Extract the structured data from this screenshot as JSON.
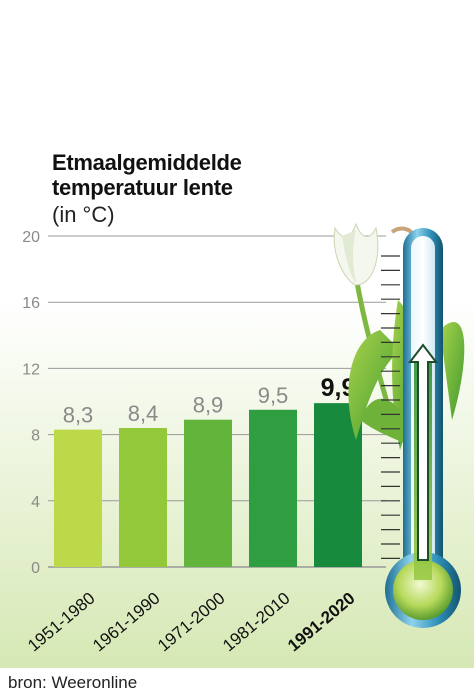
{
  "chart_data": {
    "type": "bar",
    "title": "Etmaalgemiddelde temperatuur lente",
    "title_lines": [
      "Etmaalgemiddelde",
      "temperatuur lente"
    ],
    "unit_label": "(in °C)",
    "categories": [
      "1951-1980",
      "1961-1990",
      "1971-2000",
      "1981-2010",
      "1991-2020"
    ],
    "values": [
      8.3,
      8.4,
      8.9,
      9.5,
      9.9
    ],
    "value_labels": [
      "8,3",
      "8,4",
      "8,9",
      "9,5",
      "9,9"
    ],
    "highlighted_category": "1991-2020",
    "ylim": [
      0,
      20
    ],
    "yticks": [
      0,
      4,
      8,
      12,
      16,
      20
    ],
    "grid": true,
    "legend": "none",
    "colors": {
      "bars": [
        "#bcd94a",
        "#93c83b",
        "#62b43b",
        "#2f9e40",
        "#178a3e"
      ],
      "grid": "#999999",
      "tick_label": "#8a8a8a",
      "value_label": "#8a8a8a",
      "highlight_label": "#111111"
    }
  },
  "source": "bron: Weeronline",
  "decoration": {
    "thermometer-icon": "thermometer with upward arrow",
    "tulip-icon": "white tulip with green leaves"
  }
}
